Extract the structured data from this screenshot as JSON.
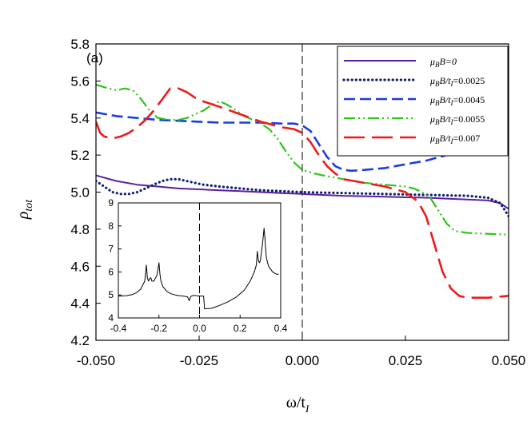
{
  "chart_data": [
    {
      "type": "line",
      "panel_label": "(a)",
      "xlabel": "ω/t",
      "xlabel_sub": "I",
      "ylabel": "ρ",
      "ylabel_sub": "tot",
      "xlim": [
        -0.05,
        0.05
      ],
      "ylim": [
        4.2,
        5.8
      ],
      "x_ticks": [
        -0.05,
        -0.025,
        0.0,
        0.025,
        0.05
      ],
      "x_tick_labels": [
        "-0.050",
        "-0.025",
        "0.000",
        "0.025",
        "0.050"
      ],
      "y_ticks": [
        4.2,
        4.4,
        4.6,
        4.8,
        5.0,
        5.2,
        5.4,
        5.6,
        5.8
      ],
      "y_tick_labels": [
        "4.2",
        "4.4",
        "4.6",
        "4.8",
        "5.0",
        "5.2",
        "5.4",
        "5.6",
        "5.8"
      ],
      "vline_x": 0.0,
      "legend_position": "top-right",
      "series": [
        {
          "name": "μ_B B=0",
          "legend_pre": "μ",
          "legend_sub": "B",
          "legend_post": "B=0",
          "color": "#5a1f9e",
          "style": "solid",
          "x": [
            -0.05,
            -0.045,
            -0.04,
            -0.035,
            -0.03,
            -0.025,
            -0.02,
            -0.015,
            -0.01,
            -0.005,
            0.0,
            0.005,
            0.01,
            0.015,
            0.02,
            0.025,
            0.03,
            0.035,
            0.04,
            0.045,
            0.048,
            0.05
          ],
          "y": [
            5.09,
            5.06,
            5.04,
            5.03,
            5.02,
            5.015,
            5.01,
            5.005,
            5.0,
            4.995,
            4.99,
            4.985,
            4.98,
            4.978,
            4.975,
            4.972,
            4.97,
            4.965,
            4.96,
            4.955,
            4.94,
            4.91
          ]
        },
        {
          "name": "μ_B B/t_I=0.0025",
          "legend_pre": "μ",
          "legend_sub": "B",
          "legend_post": "B/t",
          "legend_sub2": "I",
          "legend_tail": "=0.0025",
          "color": "#10206e",
          "style": "dotted",
          "x": [
            -0.05,
            -0.048,
            -0.046,
            -0.044,
            -0.042,
            -0.04,
            -0.038,
            -0.036,
            -0.034,
            -0.032,
            -0.03,
            -0.028,
            -0.026,
            -0.024,
            -0.02,
            -0.015,
            -0.01,
            -0.005,
            0.0,
            0.01,
            0.02,
            0.03,
            0.04,
            0.045,
            0.048,
            0.05
          ],
          "y": [
            5.06,
            5.03,
            5.0,
            4.99,
            4.99,
            5.0,
            5.02,
            5.04,
            5.06,
            5.07,
            5.07,
            5.06,
            5.05,
            5.04,
            5.03,
            5.02,
            5.01,
            5.005,
            5.0,
            4.995,
            4.99,
            4.985,
            4.98,
            4.97,
            4.94,
            4.87
          ]
        },
        {
          "name": "μ_B B/t_I=0.0045",
          "legend_pre": "μ",
          "legend_sub": "B",
          "legend_post": "B/t",
          "legend_sub2": "I",
          "legend_tail": "=0.0045",
          "color": "#1a3ee0",
          "style": "dash",
          "x": [
            -0.05,
            -0.045,
            -0.04,
            -0.035,
            -0.03,
            -0.025,
            -0.02,
            -0.015,
            -0.01,
            -0.005,
            -0.002,
            0.0,
            0.002,
            0.004,
            0.006,
            0.008,
            0.01,
            0.012,
            0.015,
            0.02,
            0.025,
            0.03,
            0.035,
            0.04
          ],
          "y": [
            5.43,
            5.41,
            5.4,
            5.39,
            5.385,
            5.38,
            5.375,
            5.375,
            5.375,
            5.37,
            5.37,
            5.36,
            5.33,
            5.26,
            5.19,
            5.14,
            5.12,
            5.115,
            5.12,
            5.13,
            5.15,
            5.17,
            5.2,
            5.23
          ]
        },
        {
          "name": "μ_B B/t_I=0.0055",
          "legend_pre": "μ",
          "legend_sub": "B",
          "legend_post": "B/t",
          "legend_sub2": "I",
          "legend_tail": "=0.0055",
          "color": "#2ec418",
          "style": "dashdotdot",
          "x": [
            -0.05,
            -0.047,
            -0.045,
            -0.043,
            -0.041,
            -0.039,
            -0.037,
            -0.035,
            -0.032,
            -0.03,
            -0.028,
            -0.026,
            -0.024,
            -0.022,
            -0.02,
            -0.018,
            -0.016,
            -0.014,
            -0.012,
            -0.01,
            -0.008,
            -0.006,
            -0.004,
            -0.002,
            0.0,
            0.003,
            0.005,
            0.01,
            0.015,
            0.02,
            0.025,
            0.027,
            0.029,
            0.031,
            0.033,
            0.035,
            0.037,
            0.04,
            0.045,
            0.05
          ],
          "y": [
            5.58,
            5.56,
            5.55,
            5.56,
            5.55,
            5.5,
            5.44,
            5.4,
            5.39,
            5.39,
            5.4,
            5.42,
            5.44,
            5.47,
            5.49,
            5.47,
            5.44,
            5.41,
            5.39,
            5.37,
            5.34,
            5.29,
            5.22,
            5.16,
            5.12,
            5.1,
            5.09,
            5.07,
            5.05,
            5.04,
            5.03,
            5.02,
            5.0,
            4.97,
            4.9,
            4.83,
            4.79,
            4.78,
            4.775,
            4.77
          ]
        },
        {
          "name": "μ_B B/t_I=0.007",
          "legend_pre": "μ",
          "legend_sub": "B",
          "legend_post": "B/t",
          "legend_sub2": "I",
          "legend_tail": "=0.007",
          "color": "#ee1a1a",
          "style": "longdash",
          "x": [
            -0.05,
            -0.049,
            -0.048,
            -0.046,
            -0.044,
            -0.042,
            -0.04,
            -0.038,
            -0.036,
            -0.034,
            -0.032,
            -0.03,
            -0.028,
            -0.026,
            -0.024,
            -0.02,
            -0.015,
            -0.01,
            -0.005,
            -0.002,
            0.0,
            0.002,
            0.004,
            0.006,
            0.008,
            0.01,
            0.015,
            0.02,
            0.025,
            0.028,
            0.03,
            0.032,
            0.034,
            0.036,
            0.038,
            0.04,
            0.045,
            0.05
          ],
          "y": [
            5.38,
            5.32,
            5.3,
            5.29,
            5.3,
            5.32,
            5.35,
            5.39,
            5.44,
            5.5,
            5.56,
            5.56,
            5.54,
            5.51,
            5.49,
            5.46,
            5.42,
            5.38,
            5.35,
            5.34,
            5.32,
            5.27,
            5.2,
            5.14,
            5.1,
            5.07,
            5.05,
            5.03,
            5.0,
            4.95,
            4.87,
            4.72,
            4.57,
            4.48,
            4.44,
            4.43,
            4.43,
            4.44
          ]
        }
      ]
    },
    {
      "type": "line",
      "role": "inset",
      "xlim": [
        -0.4,
        0.4
      ],
      "ylim": [
        4,
        9
      ],
      "x_ticks": [
        -0.4,
        -0.2,
        0.0,
        0.2,
        0.4
      ],
      "x_tick_labels": [
        "-0.4",
        "-0.2",
        "0.0",
        "0.2",
        "0.4"
      ],
      "y_ticks": [
        4,
        5,
        6,
        7,
        8,
        9
      ],
      "y_tick_labels": [
        "4",
        "5",
        "6",
        "7",
        "8",
        "9"
      ],
      "vline_x": 0.0,
      "series": [
        {
          "name": "inset",
          "color": "#000000",
          "x": [
            -0.4,
            -0.36,
            -0.33,
            -0.31,
            -0.29,
            -0.27,
            -0.262,
            -0.257,
            -0.252,
            -0.246,
            -0.24,
            -0.235,
            -0.225,
            -0.21,
            -0.2,
            -0.195,
            -0.19,
            -0.18,
            -0.16,
            -0.14,
            -0.12,
            -0.1,
            -0.08,
            -0.06,
            -0.05,
            -0.045,
            -0.04,
            -0.03,
            -0.015,
            0.0,
            0.01,
            0.02,
            0.025,
            0.03,
            0.06,
            0.1,
            0.14,
            0.18,
            0.22,
            0.25,
            0.27,
            0.28,
            0.285,
            0.29,
            0.295,
            0.3,
            0.31,
            0.318,
            0.322,
            0.326,
            0.33,
            0.34,
            0.36,
            0.38,
            0.39
          ],
          "y": [
            4.95,
            4.97,
            5.02,
            5.1,
            5.25,
            5.6,
            6.3,
            5.75,
            5.6,
            5.7,
            5.75,
            5.6,
            5.6,
            5.85,
            6.4,
            5.9,
            5.6,
            5.35,
            5.15,
            5.05,
            5.0,
            4.97,
            4.95,
            4.92,
            4.75,
            4.9,
            4.95,
            4.98,
            4.97,
            4.95,
            4.95,
            4.95,
            4.4,
            4.4,
            4.42,
            4.55,
            4.7,
            4.9,
            5.2,
            5.6,
            6.0,
            6.3,
            6.9,
            6.5,
            6.4,
            6.5,
            7.2,
            7.9,
            7.5,
            7.0,
            6.6,
            6.25,
            6.0,
            5.9,
            5.9
          ]
        }
      ]
    }
  ]
}
